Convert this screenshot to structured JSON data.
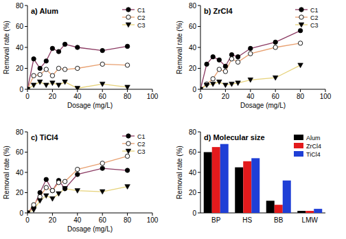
{
  "chart_data": [
    {
      "type": "line",
      "title": "a) Alum",
      "xlabel": "Dosage (mg/L)",
      "ylabel": "Removal rate (%)",
      "x": [
        0,
        5,
        10,
        15,
        20,
        25,
        30,
        40,
        60,
        80
      ],
      "series": [
        {
          "name": "C1",
          "color": "#8b3a62",
          "marker": "circle",
          "values": [
            0,
            29,
            20,
            27,
            39,
            36,
            43,
            40,
            37,
            41
          ]
        },
        {
          "name": "C2",
          "color": "#e8a070",
          "marker": "open-circle",
          "values": [
            0,
            13,
            14,
            19,
            13,
            20,
            19,
            20,
            24,
            23
          ]
        },
        {
          "name": "C3",
          "color": "#e6d27a",
          "marker": "triangle-down",
          "values": [
            0,
            4,
            7,
            4,
            6,
            4,
            7,
            1,
            5,
            2
          ]
        }
      ],
      "xlim": [
        0,
        100
      ],
      "ylim": [
        0,
        80
      ],
      "xticks": [
        0,
        20,
        40,
        60,
        80,
        100
      ],
      "yticks": [
        0,
        20,
        40,
        60,
        80
      ],
      "legend": "upper right"
    },
    {
      "type": "line",
      "title": "b) ZrCl4",
      "xlabel": "Dosage (mg/L)",
      "ylabel": "Removal rate (%)",
      "x": [
        0,
        5,
        10,
        15,
        20,
        25,
        30,
        40,
        60,
        80
      ],
      "series": [
        {
          "name": "C1",
          "color": "#8b3a62",
          "marker": "circle",
          "values": [
            0,
            24,
            31,
            28,
            22,
            33,
            31,
            39,
            45,
            56
          ]
        },
        {
          "name": "C2",
          "color": "#e8a070",
          "marker": "open-circle",
          "values": [
            0,
            5,
            10,
            19,
            17,
            29,
            26,
            34,
            40,
            44
          ]
        },
        {
          "name": "C3",
          "color": "#e6d27a",
          "marker": "triangle-down",
          "values": [
            0,
            4,
            5,
            7,
            4,
            5,
            6,
            9,
            11,
            23
          ]
        }
      ],
      "xlim": [
        0,
        100
      ],
      "ylim": [
        0,
        80
      ],
      "xticks": [
        0,
        20,
        40,
        60,
        80,
        100
      ],
      "yticks": [
        0,
        20,
        40,
        60,
        80
      ],
      "legend": "upper right"
    },
    {
      "type": "line",
      "title": "c) TiCl4",
      "xlabel": "Dosage (mg/L)",
      "ylabel": "Removal rate (%)",
      "x": [
        0,
        5,
        10,
        15,
        20,
        25,
        30,
        40,
        60,
        80
      ],
      "series": [
        {
          "name": "C1",
          "color": "#8b3a62",
          "marker": "circle",
          "values": [
            0,
            6,
            20,
            33,
            22,
            32,
            24,
            38,
            44,
            42
          ]
        },
        {
          "name": "C2",
          "color": "#e8a070",
          "marker": "open-circle",
          "values": [
            0,
            8,
            16,
            25,
            22,
            30,
            31,
            43,
            49,
            56
          ]
        },
        {
          "name": "C3",
          "color": "#e6d27a",
          "marker": "triangle-down",
          "values": [
            0,
            3,
            12,
            17,
            14,
            19,
            24,
            22,
            21,
            26
          ]
        }
      ],
      "xlim": [
        0,
        100
      ],
      "ylim": [
        0,
        80
      ],
      "xticks": [
        0,
        20,
        40,
        60,
        80,
        100
      ],
      "yticks": [
        0,
        20,
        40,
        60,
        80
      ],
      "legend": "upper right"
    },
    {
      "type": "bar",
      "title": "d) Molecular size",
      "ylabel": "Removal rate (%)",
      "categories": [
        "BP",
        "HS",
        "BB",
        "LMW"
      ],
      "series": [
        {
          "name": "Alum",
          "color": "#000000",
          "values": [
            60,
            45,
            12,
            2
          ]
        },
        {
          "name": "ZrCl4",
          "color": "#e31a1c",
          "values": [
            65,
            51,
            8,
            2
          ]
        },
        {
          "name": "TiCl4",
          "color": "#1f3fd6",
          "values": [
            68,
            54,
            32,
            4
          ]
        }
      ],
      "ylim": [
        0,
        80
      ],
      "yticks": [
        0,
        20,
        40,
        60,
        80
      ],
      "legend": "upper right"
    }
  ]
}
